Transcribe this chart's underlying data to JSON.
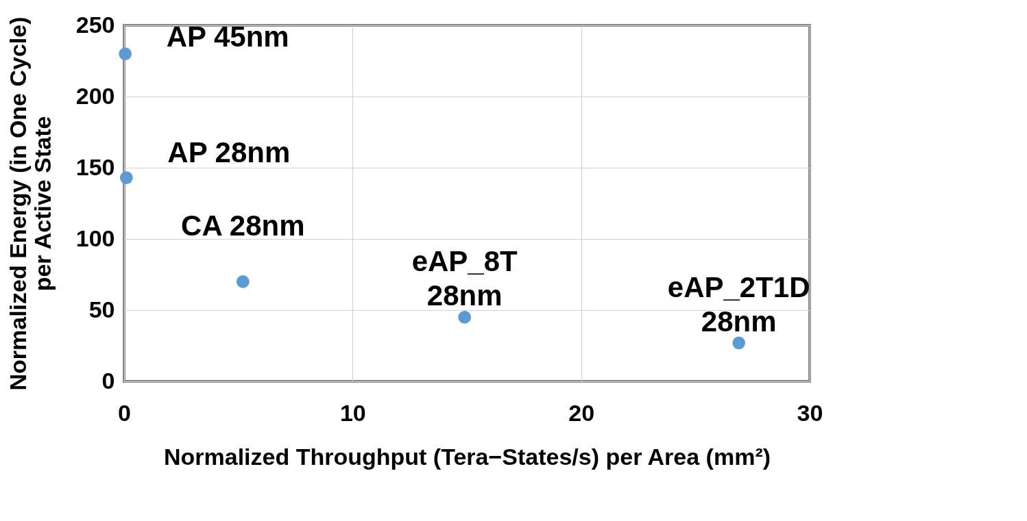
{
  "chart_data": {
    "type": "scatter",
    "xlabel": "Normalized Throughput (Tera−States/s) per Area (mm²)",
    "ylabel": "Normalized Energy (in One Cycle)\nper Active State",
    "x": [
      0.05,
      0.1,
      5.2,
      14.9,
      26.9
    ],
    "series": [
      {
        "color": "#5b9bd5",
        "values": [
          230,
          143,
          70,
          45,
          27
        ]
      }
    ],
    "annotations": [
      {
        "text": "AP 45nm",
        "x": 0.05,
        "y": 230
      },
      {
        "text": "AP 28nm",
        "x": 0.1,
        "y": 143
      },
      {
        "text": "CA 28nm",
        "x": 5.2,
        "y": 70
      },
      {
        "text": "eAP_8T\n28nm",
        "x": 14.9,
        "y": 45
      },
      {
        "text": "eAP_2T1D\n28nm",
        "x": 26.9,
        "y": 27
      }
    ],
    "xlim": [
      0,
      30
    ],
    "xticks": [
      0,
      10,
      20,
      30
    ],
    "ylim": [
      0,
      250
    ],
    "yticks": [
      0,
      50,
      100,
      150,
      200,
      250
    ],
    "grid": true,
    "marker": "circle"
  }
}
